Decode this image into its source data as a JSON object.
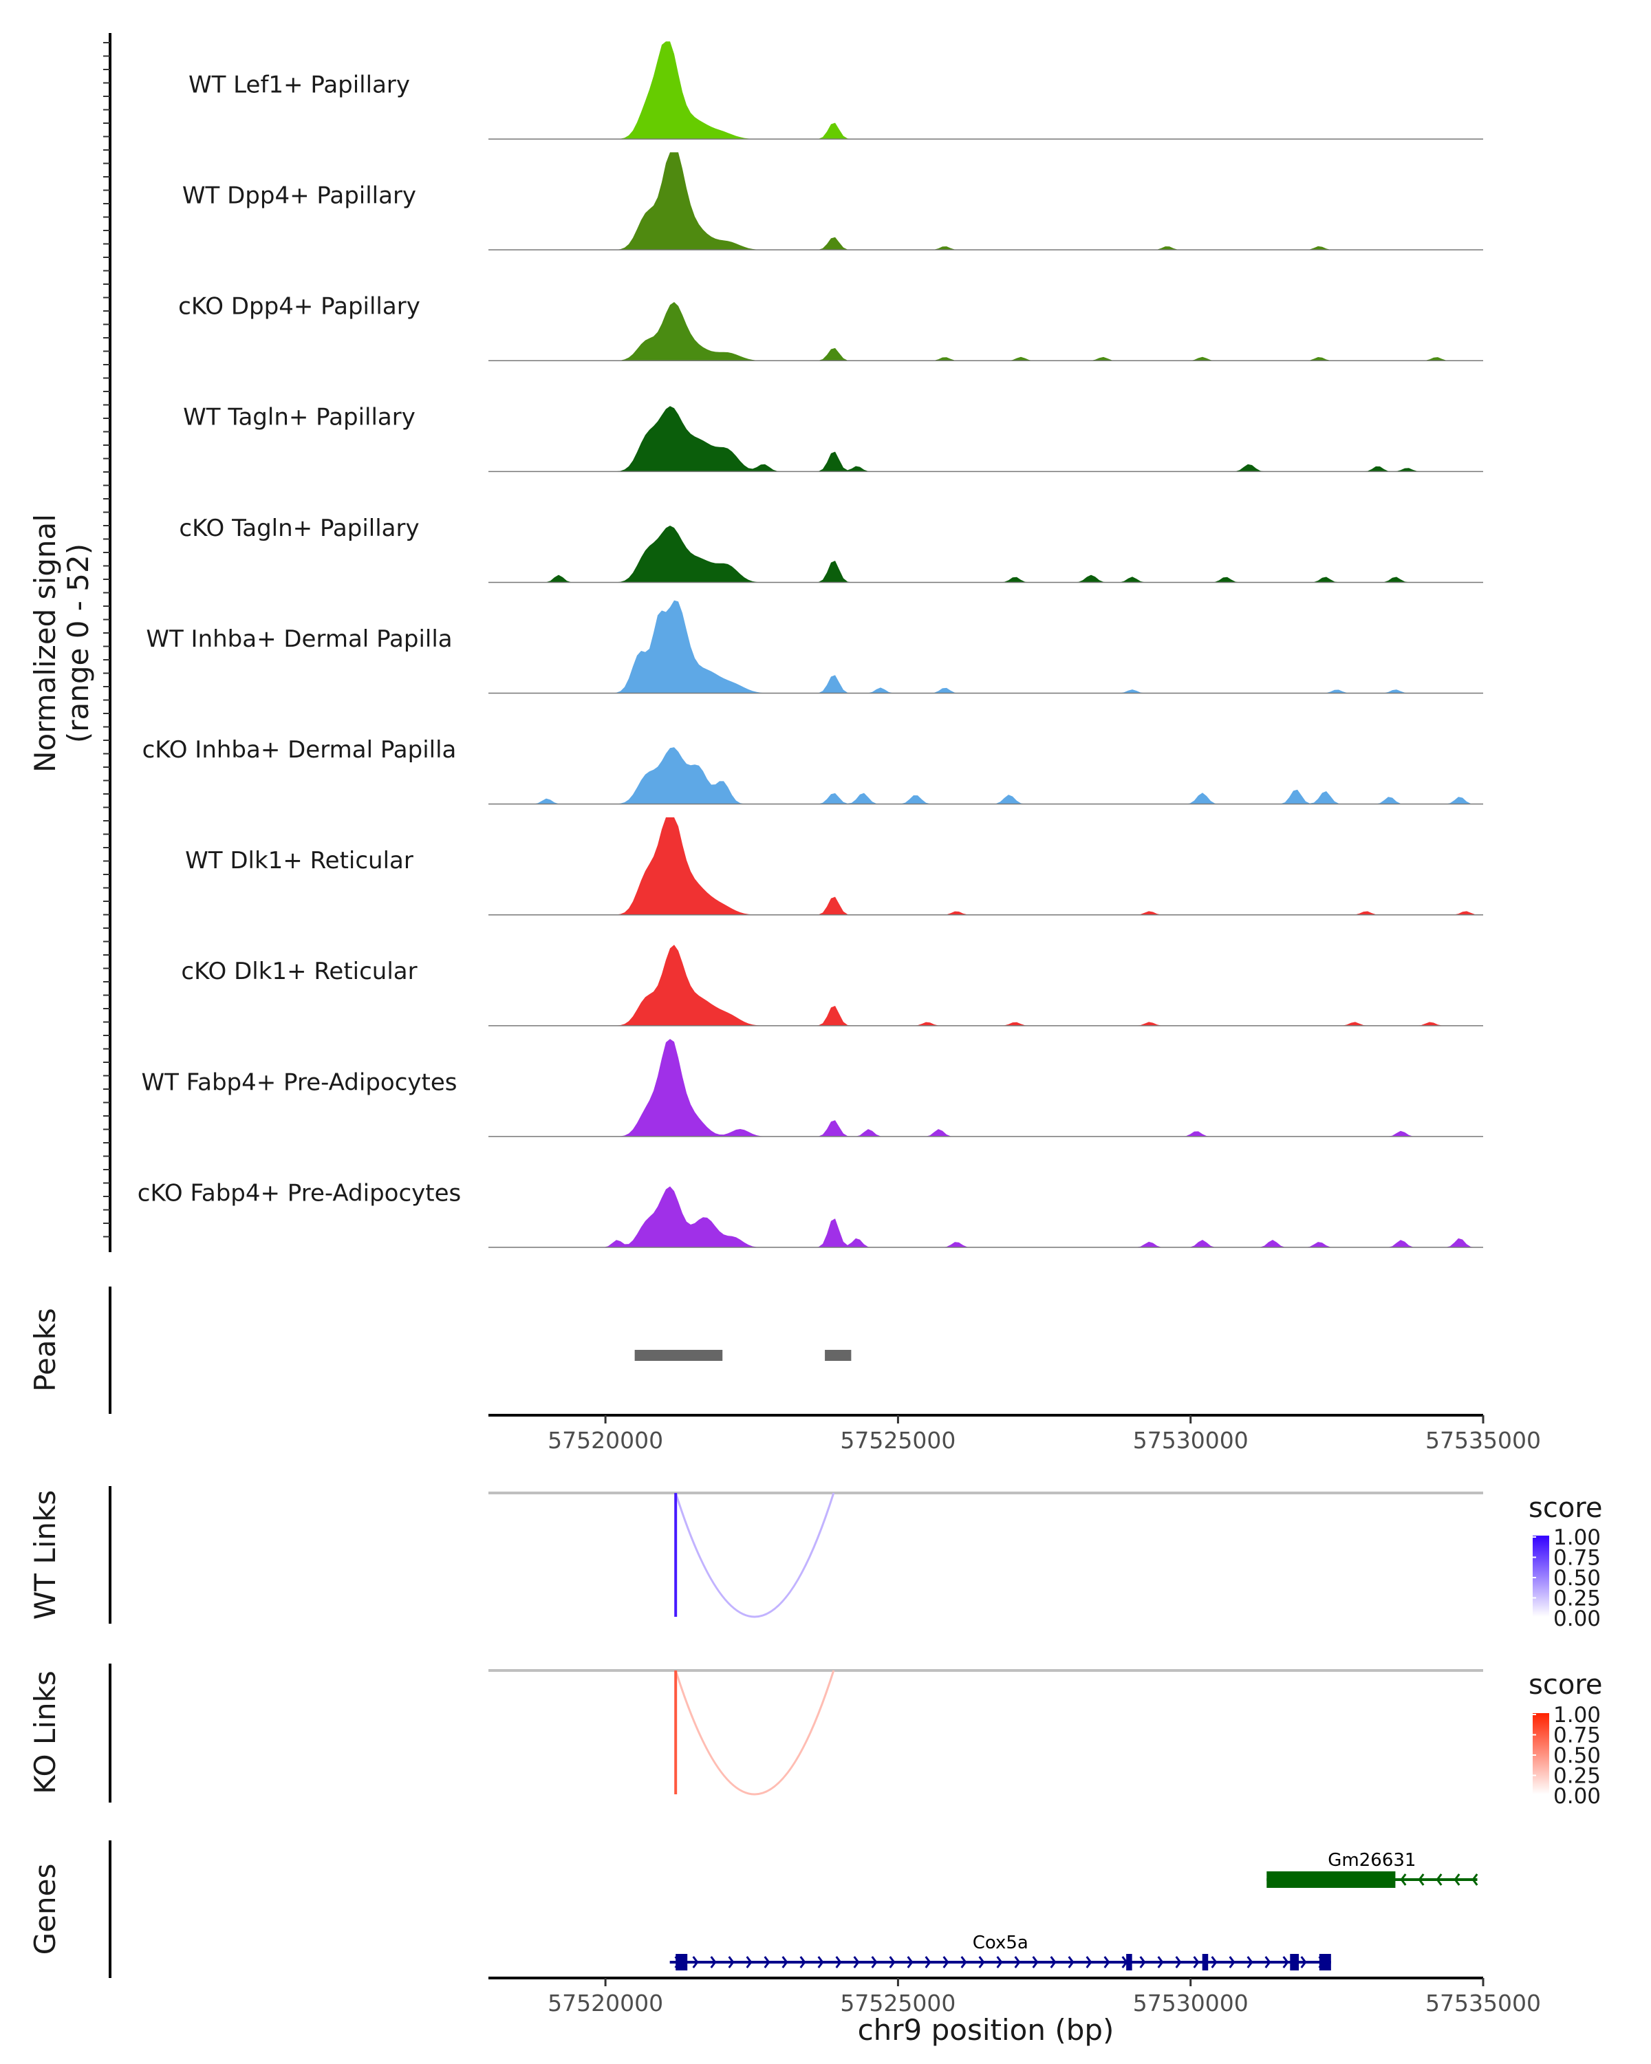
{
  "chart_data": {
    "type": "area",
    "region": "chr9",
    "xlim": [
      57518000,
      57535000
    ],
    "ylabel": [
      "Normalized signal",
      "(range 0 - 52)"
    ],
    "ylim": [
      0,
      52
    ],
    "coverage_tracks": [
      {
        "name": "WT Lef1+ Papillary",
        "color": "#66cc00",
        "peaks": [
          [
            57521050,
            52,
            180
          ],
          [
            57520700,
            14,
            150
          ],
          [
            57521500,
            10,
            250
          ],
          [
            57522000,
            3,
            200
          ],
          [
            57523900,
            9,
            90
          ]
        ]
      },
      {
        "name": "WT Dpp4+ Papillary",
        "color": "#4f8a10",
        "peaks": [
          [
            57521150,
            52,
            180
          ],
          [
            57520700,
            18,
            160
          ],
          [
            57521500,
            12,
            250
          ],
          [
            57522100,
            4,
            200
          ],
          [
            57523900,
            7,
            90
          ],
          [
            57525800,
            2,
            80
          ],
          [
            57529600,
            2,
            80
          ],
          [
            57532200,
            2,
            80
          ]
        ]
      },
      {
        "name": "cKO Dpp4+ Papillary",
        "color": "#4a8c12",
        "peaks": [
          [
            57521150,
            28,
            180
          ],
          [
            57520700,
            10,
            160
          ],
          [
            57521500,
            8,
            250
          ],
          [
            57522100,
            4,
            200
          ],
          [
            57523900,
            7,
            90
          ],
          [
            57525800,
            2,
            80
          ],
          [
            57527100,
            2,
            80
          ],
          [
            57528500,
            2,
            80
          ],
          [
            57530200,
            2,
            80
          ],
          [
            57532200,
            2,
            80
          ],
          [
            57534200,
            2,
            80
          ]
        ]
      },
      {
        "name": "WT Tagln+ Papillary",
        "color": "#0b5e0b",
        "peaks": [
          [
            57521100,
            32,
            200
          ],
          [
            57520700,
            16,
            160
          ],
          [
            57521600,
            16,
            250
          ],
          [
            57522100,
            10,
            180
          ],
          [
            57522700,
            4,
            100
          ],
          [
            57523900,
            11,
            90
          ],
          [
            57524300,
            3,
            80
          ],
          [
            57531000,
            4,
            90
          ],
          [
            57533200,
            3,
            80
          ],
          [
            57533700,
            2,
            80
          ]
        ]
      },
      {
        "name": "cKO Tagln+ Papillary",
        "color": "#0b5e0b",
        "peaks": [
          [
            57521100,
            28,
            200
          ],
          [
            57520700,
            14,
            160
          ],
          [
            57521600,
            12,
            250
          ],
          [
            57522100,
            8,
            180
          ],
          [
            57519200,
            4,
            80
          ],
          [
            57523900,
            12,
            90
          ],
          [
            57527000,
            3,
            80
          ],
          [
            57528300,
            4,
            90
          ],
          [
            57529000,
            3,
            80
          ],
          [
            57530600,
            3,
            80
          ],
          [
            57532300,
            3,
            80
          ],
          [
            57533500,
            3,
            80
          ]
        ]
      },
      {
        "name": "WT Inhba+ Dermal Papilla",
        "color": "#5ea8e6",
        "peaks": [
          [
            57521200,
            48,
            180
          ],
          [
            57520600,
            22,
            140
          ],
          [
            57520900,
            28,
            100
          ],
          [
            57521700,
            12,
            250
          ],
          [
            57522200,
            4,
            200
          ],
          [
            57523900,
            10,
            90
          ],
          [
            57524700,
            3,
            80
          ],
          [
            57525800,
            3,
            80
          ],
          [
            57529000,
            2,
            80
          ],
          [
            57532500,
            2,
            80
          ],
          [
            57533500,
            2,
            80
          ]
        ]
      },
      {
        "name": "cKO Inhba+ Dermal Papilla",
        "color": "#5ea8e6",
        "peaks": [
          [
            57521150,
            30,
            200
          ],
          [
            57520700,
            14,
            160
          ],
          [
            57521600,
            18,
            150
          ],
          [
            57522000,
            12,
            120
          ],
          [
            57519000,
            3,
            80
          ],
          [
            57523900,
            6,
            90
          ],
          [
            57524400,
            6,
            90
          ],
          [
            57525300,
            5,
            90
          ],
          [
            57526900,
            5,
            90
          ],
          [
            57530200,
            6,
            90
          ],
          [
            57531800,
            8,
            90
          ],
          [
            57532300,
            7,
            90
          ],
          [
            57533400,
            4,
            80
          ],
          [
            57534600,
            4,
            80
          ]
        ]
      },
      {
        "name": "WT Dlk1+ Reticular",
        "color": "#f03232",
        "peaks": [
          [
            57521100,
            52,
            180
          ],
          [
            57520700,
            20,
            160
          ],
          [
            57521500,
            16,
            250
          ],
          [
            57522000,
            4,
            200
          ],
          [
            57523900,
            10,
            90
          ],
          [
            57526000,
            2,
            80
          ],
          [
            57529300,
            2,
            80
          ],
          [
            57533000,
            2,
            80
          ],
          [
            57534700,
            2,
            80
          ]
        ]
      },
      {
        "name": "cKO Dlk1+ Reticular",
        "color": "#f03232",
        "peaks": [
          [
            57521150,
            40,
            180
          ],
          [
            57520700,
            14,
            160
          ],
          [
            57521600,
            14,
            250
          ],
          [
            57522100,
            5,
            200
          ],
          [
            57523900,
            11,
            90
          ],
          [
            57525500,
            2,
            80
          ],
          [
            57527000,
            2,
            80
          ],
          [
            57529300,
            2,
            80
          ],
          [
            57532800,
            2,
            80
          ],
          [
            57534100,
            2,
            80
          ]
        ]
      },
      {
        "name": "WT Fabp4+ Pre-Adipocytes",
        "color": "#a030e8",
        "peaks": [
          [
            57521100,
            52,
            180
          ],
          [
            57520700,
            12,
            150
          ],
          [
            57521500,
            10,
            200
          ],
          [
            57522300,
            4,
            150
          ],
          [
            57523900,
            9,
            90
          ],
          [
            57524500,
            4,
            80
          ],
          [
            57525700,
            4,
            80
          ],
          [
            57530100,
            3,
            80
          ],
          [
            57533600,
            3,
            80
          ]
        ]
      },
      {
        "name": "cKO Fabp4+ Pre-Adipocytes",
        "color": "#a030e8",
        "peaks": [
          [
            57521100,
            32,
            180
          ],
          [
            57520700,
            12,
            150
          ],
          [
            57521700,
            16,
            200
          ],
          [
            57522200,
            5,
            150
          ],
          [
            57520200,
            4,
            80
          ],
          [
            57523900,
            16,
            90
          ],
          [
            57524300,
            5,
            80
          ],
          [
            57526000,
            3,
            80
          ],
          [
            57529300,
            3,
            80
          ],
          [
            57530200,
            4,
            80
          ],
          [
            57531400,
            4,
            80
          ],
          [
            57532200,
            3,
            80
          ],
          [
            57533600,
            4,
            80
          ],
          [
            57534600,
            5,
            80
          ]
        ]
      }
    ],
    "peaks_track": {
      "label": "Peaks",
      "color": "#666666",
      "regions": [
        [
          57520500,
          57522000
        ],
        [
          57523750,
          57524200
        ]
      ]
    },
    "position_axis": {
      "ticks": [
        57520000,
        57525000,
        57530000,
        57535000
      ],
      "tick_labels": [
        "57520000",
        "57525000",
        "57530000",
        "57535000"
      ]
    },
    "links": [
      {
        "label": "WT Links",
        "legend_title": "score",
        "color_high": "#3300ff",
        "legend_ticks": [
          "1.00",
          "0.75",
          "0.50",
          "0.25",
          "0.00"
        ],
        "arcs": [
          {
            "start": 57521200,
            "end": 57523900,
            "score": 0.3
          },
          {
            "start": 57521200,
            "end": 57521230,
            "score": 0.9
          }
        ]
      },
      {
        "label": "KO Links",
        "legend_title": "score",
        "color_high": "#ff2200",
        "legend_ticks": [
          "1.00",
          "0.75",
          "0.50",
          "0.25",
          "0.00"
        ],
        "arcs": [
          {
            "start": 57521200,
            "end": 57523900,
            "score": 0.3
          },
          {
            "start": 57521200,
            "end": 57521230,
            "score": 0.75
          }
        ]
      }
    ],
    "genes_track": {
      "label": "Genes",
      "genes": [
        {
          "name": "Gm26631",
          "start": 57531300,
          "end": 57534900,
          "strand": "-",
          "color": "#006400",
          "exons": [
            [
              57531300,
              57533500
            ]
          ]
        },
        {
          "name": "Cox5a",
          "start": 57521100,
          "end": 57532400,
          "strand": "+",
          "color": "#00008b",
          "exons": [
            [
              57521200,
              57521400
            ],
            [
              57528900,
              57529000
            ],
            [
              57530200,
              57530300
            ],
            [
              57531700,
              57531850
            ],
            [
              57532200,
              57532400
            ]
          ]
        }
      ]
    },
    "xlabel": "chr9 position (bp)"
  }
}
